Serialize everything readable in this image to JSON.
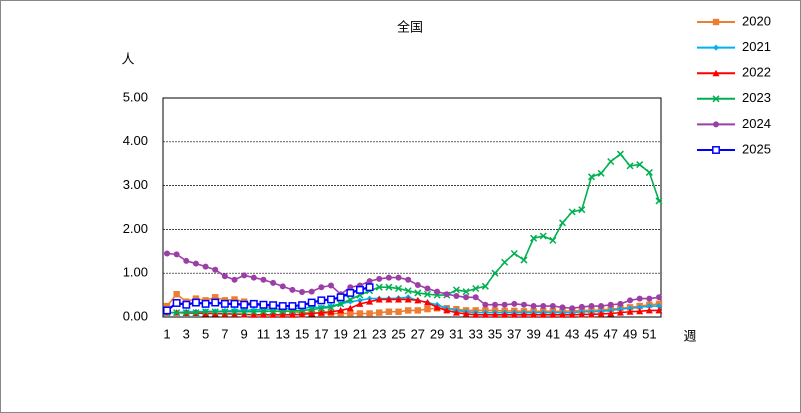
{
  "chart_data": {
    "type": "line",
    "title": "全国",
    "y_label": "人",
    "x_label": "週",
    "categories": [
      "1",
      null,
      "3",
      null,
      "5",
      null,
      "7",
      null,
      "9",
      null,
      "11",
      null,
      "13",
      null,
      "15",
      null,
      "17",
      null,
      "19",
      null,
      "21",
      null,
      "23",
      null,
      "25",
      null,
      "27",
      null,
      "29",
      null,
      "31",
      null,
      "33",
      null,
      "35",
      null,
      "37",
      null,
      "39",
      null,
      "41",
      null,
      "43",
      null,
      "45",
      null,
      "47",
      null,
      "49",
      null,
      "51",
      null
    ],
    "ylim": [
      0,
      5
    ],
    "yticks": [
      {
        "value": 0,
        "label": "0.00"
      },
      {
        "value": 1,
        "label": "1.00"
      },
      {
        "value": 2,
        "label": "2.00"
      },
      {
        "value": 3,
        "label": "3.00"
      },
      {
        "value": 4,
        "label": "4.00"
      },
      {
        "value": 5,
        "label": "5.00"
      }
    ],
    "grid": true,
    "series": [
      {
        "name": "2020",
        "color": "#ed7d31",
        "marker": "square",
        "values": [
          0.25,
          0.52,
          0.35,
          0.42,
          0.38,
          0.45,
          0.38,
          0.4,
          0.35,
          0.3,
          0.25,
          0.2,
          0.15,
          0.12,
          0.1,
          0.1,
          0.08,
          0.08,
          0.08,
          0.08,
          0.08,
          0.08,
          0.1,
          0.12,
          0.12,
          0.15,
          0.15,
          0.18,
          0.2,
          0.2,
          0.18,
          0.15,
          0.15,
          0.15,
          0.15,
          0.14,
          0.14,
          0.13,
          0.13,
          0.13,
          0.13,
          0.13,
          0.14,
          0.15,
          0.15,
          0.16,
          0.18,
          0.2,
          0.22,
          0.25,
          0.28,
          0.3
        ]
      },
      {
        "name": "2021",
        "color": "#00b0f0",
        "marker": "diamond",
        "values": [
          0.1,
          0.1,
          0.12,
          0.12,
          0.13,
          0.13,
          0.14,
          0.15,
          0.15,
          0.16,
          0.17,
          0.18,
          0.18,
          0.2,
          0.2,
          0.22,
          0.22,
          0.25,
          0.3,
          0.35,
          0.38,
          0.42,
          0.42,
          0.42,
          0.43,
          0.45,
          0.38,
          0.33,
          0.28,
          0.2,
          0.15,
          0.12,
          0.1,
          0.1,
          0.1,
          0.1,
          0.1,
          0.1,
          0.1,
          0.1,
          0.1,
          0.1,
          0.1,
          0.12,
          0.12,
          0.13,
          0.15,
          0.18,
          0.2,
          0.22,
          0.25,
          0.25
        ]
      },
      {
        "name": "2022",
        "color": "#ff0000",
        "marker": "triangle",
        "values": [
          0.1,
          0.1,
          0.09,
          0.09,
          0.08,
          0.08,
          0.07,
          0.07,
          0.06,
          0.05,
          0.05,
          0.05,
          0.05,
          0.05,
          0.06,
          0.08,
          0.1,
          0.12,
          0.15,
          0.2,
          0.3,
          0.35,
          0.4,
          0.4,
          0.4,
          0.4,
          0.38,
          0.33,
          0.22,
          0.15,
          0.1,
          0.07,
          0.05,
          0.05,
          0.05,
          0.05,
          0.05,
          0.05,
          0.05,
          0.05,
          0.05,
          0.05,
          0.05,
          0.06,
          0.06,
          0.07,
          0.08,
          0.1,
          0.12,
          0.13,
          0.15,
          0.15
        ]
      },
      {
        "name": "2023",
        "color": "#00b050",
        "marker": "x",
        "values": [
          0.1,
          0.1,
          0.1,
          0.1,
          0.12,
          0.12,
          0.12,
          0.12,
          0.12,
          0.12,
          0.13,
          0.13,
          0.13,
          0.14,
          0.15,
          0.17,
          0.2,
          0.22,
          0.3,
          0.4,
          0.5,
          0.6,
          0.68,
          0.68,
          0.65,
          0.6,
          0.55,
          0.52,
          0.5,
          0.5,
          0.62,
          0.58,
          0.65,
          0.7,
          1.0,
          1.25,
          1.45,
          1.3,
          1.8,
          1.85,
          1.75,
          2.15,
          2.4,
          2.45,
          3.2,
          3.28,
          3.55,
          3.72,
          3.45,
          3.48,
          3.3,
          2.65
        ]
      },
      {
        "name": "2024",
        "color": "#9c3ea8",
        "marker": "circle",
        "values": [
          1.45,
          1.43,
          1.28,
          1.22,
          1.15,
          1.08,
          0.93,
          0.85,
          0.95,
          0.9,
          0.85,
          0.78,
          0.7,
          0.62,
          0.57,
          0.58,
          0.68,
          0.72,
          0.52,
          0.68,
          0.72,
          0.82,
          0.87,
          0.9,
          0.9,
          0.85,
          0.73,
          0.65,
          0.58,
          0.52,
          0.48,
          0.45,
          0.45,
          0.28,
          0.28,
          0.28,
          0.3,
          0.28,
          0.25,
          0.25,
          0.25,
          0.22,
          0.2,
          0.23,
          0.25,
          0.25,
          0.28,
          0.3,
          0.38,
          0.42,
          0.42,
          0.45
        ]
      },
      {
        "name": "2025",
        "color": "#0000ff",
        "marker": "open-square",
        "values": [
          0.15,
          0.32,
          0.28,
          0.33,
          0.3,
          0.33,
          0.3,
          0.3,
          0.28,
          0.3,
          0.28,
          0.27,
          0.25,
          0.25,
          0.27,
          0.33,
          0.38,
          0.4,
          0.45,
          0.55,
          0.62,
          0.68,
          null,
          null,
          null,
          null,
          null,
          null,
          null,
          null,
          null,
          null,
          null,
          null,
          null,
          null,
          null,
          null,
          null,
          null,
          null,
          null,
          null,
          null,
          null,
          null,
          null,
          null,
          null,
          null,
          null,
          null
        ]
      }
    ]
  }
}
